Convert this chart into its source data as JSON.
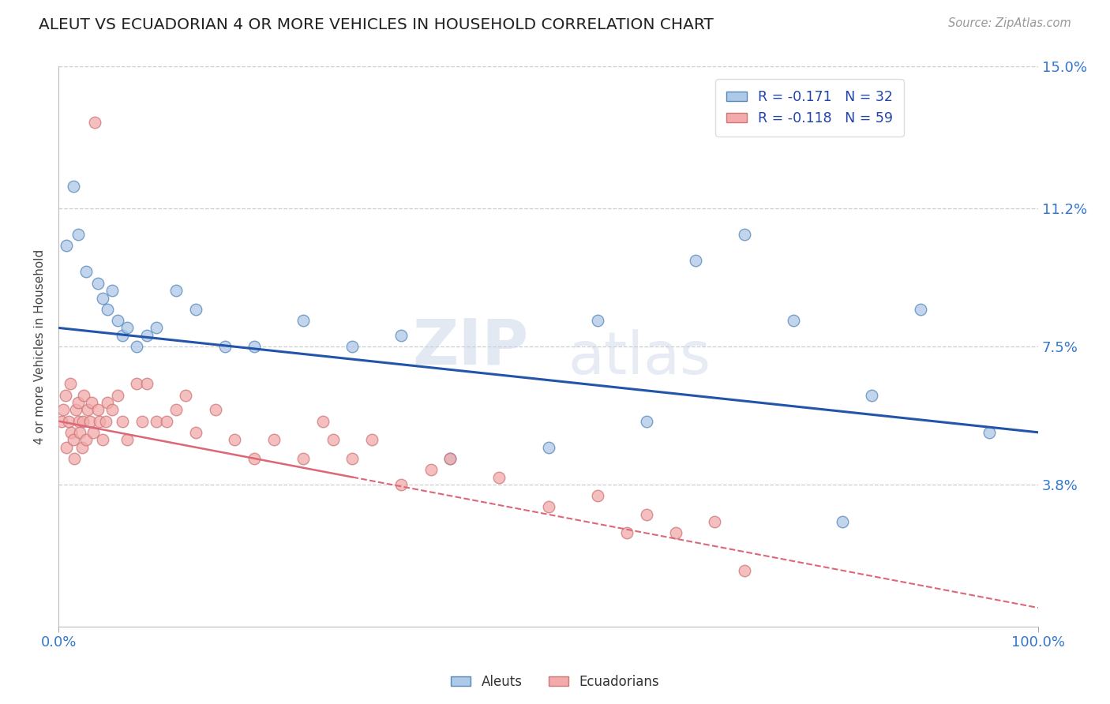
{
  "title": "ALEUT VS ECUADORIAN 4 OR MORE VEHICLES IN HOUSEHOLD CORRELATION CHART",
  "source_text": "Source: ZipAtlas.com",
  "ylabel": "4 or more Vehicles in Household",
  "xlim": [
    0.0,
    100.0
  ],
  "ylim": [
    0.0,
    15.0
  ],
  "ytick_vals": [
    3.8,
    7.5,
    11.2,
    15.0
  ],
  "ytick_labels": [
    "3.8%",
    "7.5%",
    "11.2%",
    "15.0%"
  ],
  "legend_aleut": "R = -0.171   N = 32",
  "legend_ecuadorian": "R = -0.118   N = 59",
  "aleut_fill": "#aec8e8",
  "aleut_edge": "#5588bb",
  "ecuadorian_fill": "#f4aaaa",
  "ecuadorian_edge": "#cc7777",
  "aleut_line_color": "#2255aa",
  "ecuadorian_line_color": "#dd6677",
  "background_color": "#ffffff",
  "aleut_x": [
    0.8,
    1.5,
    2.0,
    2.8,
    4.0,
    4.5,
    5.0,
    5.5,
    6.0,
    6.5,
    7.0,
    8.0,
    9.0,
    10.0,
    12.0,
    14.0,
    17.0,
    20.0,
    25.0,
    30.0,
    35.0,
    40.0,
    50.0,
    55.0,
    60.0,
    65.0,
    70.0,
    75.0,
    80.0,
    83.0,
    88.0,
    95.0
  ],
  "aleut_y": [
    10.2,
    11.8,
    10.5,
    9.5,
    9.2,
    8.8,
    8.5,
    9.0,
    8.2,
    7.8,
    8.0,
    7.5,
    7.8,
    8.0,
    9.0,
    8.5,
    7.5,
    7.5,
    8.2,
    7.5,
    7.8,
    4.5,
    4.8,
    8.2,
    5.5,
    9.8,
    10.5,
    8.2,
    2.8,
    6.2,
    8.5,
    5.2
  ],
  "ecuadorian_x": [
    0.3,
    0.5,
    0.7,
    0.8,
    1.0,
    1.2,
    1.3,
    1.5,
    1.6,
    1.8,
    2.0,
    2.1,
    2.2,
    2.4,
    2.5,
    2.6,
    2.8,
    3.0,
    3.2,
    3.4,
    3.5,
    3.7,
    4.0,
    4.2,
    4.5,
    4.8,
    5.0,
    5.5,
    6.0,
    6.5,
    7.0,
    8.0,
    8.5,
    9.0,
    10.0,
    11.0,
    12.0,
    13.0,
    14.0,
    16.0,
    18.0,
    20.0,
    22.0,
    25.0,
    27.0,
    28.0,
    30.0,
    32.0,
    35.0,
    38.0,
    40.0,
    45.0,
    50.0,
    55.0,
    58.0,
    60.0,
    63.0,
    67.0,
    70.0
  ],
  "ecuadorian_y": [
    5.5,
    5.8,
    6.2,
    4.8,
    5.5,
    6.5,
    5.2,
    5.0,
    4.5,
    5.8,
    6.0,
    5.5,
    5.2,
    4.8,
    5.5,
    6.2,
    5.0,
    5.8,
    5.5,
    6.0,
    5.2,
    13.5,
    5.8,
    5.5,
    5.0,
    5.5,
    6.0,
    5.8,
    6.2,
    5.5,
    5.0,
    6.5,
    5.5,
    6.5,
    5.5,
    5.5,
    5.8,
    6.2,
    5.2,
    5.8,
    5.0,
    4.5,
    5.0,
    4.5,
    5.5,
    5.0,
    4.5,
    5.0,
    3.8,
    4.2,
    4.5,
    4.0,
    3.2,
    3.5,
    2.5,
    3.0,
    2.5,
    2.8,
    1.5
  ],
  "aleut_reg_x0": 0.0,
  "aleut_reg_y0": 8.0,
  "aleut_reg_x1": 100.0,
  "aleut_reg_y1": 5.2,
  "ecu_reg_x0": 0.0,
  "ecu_reg_y0": 5.5,
  "ecu_reg_x1": 100.0,
  "ecu_reg_y1": 0.5,
  "ecu_solid_end": 30.0
}
